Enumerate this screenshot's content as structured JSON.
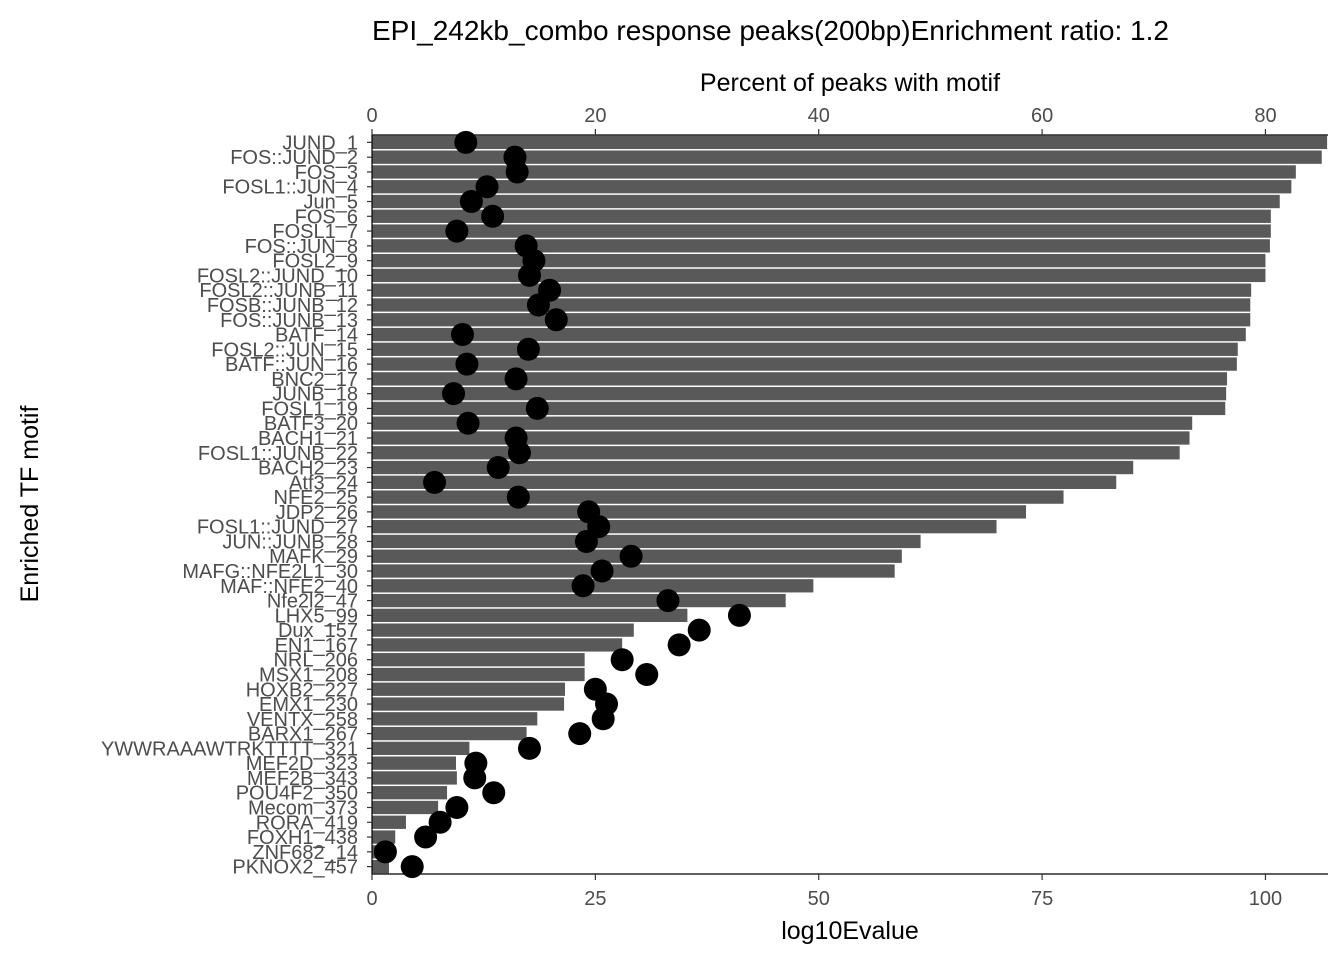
{
  "chart_data": {
    "type": "bar",
    "title": "EPI_242kb_combo response peaks(200bp)Enrichment ratio: 1.2",
    "xlabel_bottom": "log10Evalue",
    "xlabel_top": "Percent of peaks with motif",
    "ylabel": "Enriched TF motif",
    "bottom_axis": {
      "range": [
        0,
        107
      ],
      "ticks": [
        0,
        25,
        50,
        75,
        100
      ]
    },
    "top_axis": {
      "range": [
        0,
        85.6
      ],
      "ticks": [
        0,
        20,
        40,
        60,
        80
      ]
    },
    "grid": false,
    "categories": [
      "JUND_1",
      "FOS::JUND_2",
      "FOS_3",
      "FOSL1::JUN_4",
      "Jun_5",
      "FOS_6",
      "FOSL1_7",
      "FOS::JUN_8",
      "FOSL2_9",
      "FOSL2::JUND_10",
      "FOSL2::JUNB_11",
      "FOSB::JUNB_12",
      "FOS::JUNB_13",
      "BATF_14",
      "FOSL2::JUN_15",
      "BATF::JUN_16",
      "BNC2_17",
      "JUNB_18",
      "FOSL1_19",
      "BATF3_20",
      "BACH1_21",
      "FOSL1::JUNB_22",
      "BACH2_23",
      "Atf3_24",
      "NFE2_25",
      "JDP2_26",
      "FOSL1::JUND_27",
      "JUN::JUNB_28",
      "MAFK_29",
      "MAFG::NFE2L1_30",
      "MAF::NFE2_40",
      "Nfe2l2_47",
      "LHX5_99",
      "Dux_157",
      "EN1_167",
      "NRL_206",
      "MSX1_208",
      "HOXB2_227",
      "EMX1_230",
      "VENTX_258",
      "BARX1_267",
      "YWWRAAAWTRKTTTT_321",
      "MEF2D_323",
      "MEF2B_343",
      "POU4F2_350",
      "Mecom_373",
      "RORA_419",
      "FOXH1_438",
      "ZNF682_14",
      "PKNOX2_457"
    ],
    "series": [
      {
        "name": "log10Evalue",
        "type": "bar",
        "values": [
          106.9,
          106.3,
          103.4,
          102.9,
          101.6,
          100.6,
          100.6,
          100.5,
          100.0,
          100.0,
          98.4,
          98.3,
          98.3,
          97.8,
          96.9,
          96.8,
          95.7,
          95.6,
          95.5,
          91.8,
          91.5,
          90.4,
          85.2,
          83.3,
          77.4,
          73.2,
          69.9,
          61.4,
          59.3,
          58.5,
          49.4,
          46.3,
          35.3,
          29.3,
          28.0,
          23.8,
          23.8,
          21.6,
          21.5,
          18.5,
          17.3,
          10.9,
          9.4,
          9.5,
          8.4,
          7.4,
          3.8,
          2.6,
          1.9,
          1.9
        ]
      },
      {
        "name": "Percent of peaks with motif",
        "type": "scatter",
        "values": [
          8.4,
          12.8,
          13.0,
          10.3,
          8.9,
          10.8,
          7.6,
          13.8,
          14.5,
          14.1,
          15.9,
          14.9,
          16.5,
          8.1,
          14.0,
          8.5,
          12.9,
          7.3,
          14.8,
          8.6,
          12.9,
          13.2,
          11.3,
          5.6,
          13.1,
          19.4,
          20.3,
          19.2,
          23.2,
          20.6,
          18.9,
          26.5,
          32.9,
          29.3,
          27.5,
          22.4,
          24.6,
          20.0,
          21.0,
          20.7,
          18.6,
          14.1,
          9.3,
          9.2,
          10.9,
          7.6,
          6.1,
          4.8,
          1.2,
          3.6
        ]
      }
    ]
  }
}
